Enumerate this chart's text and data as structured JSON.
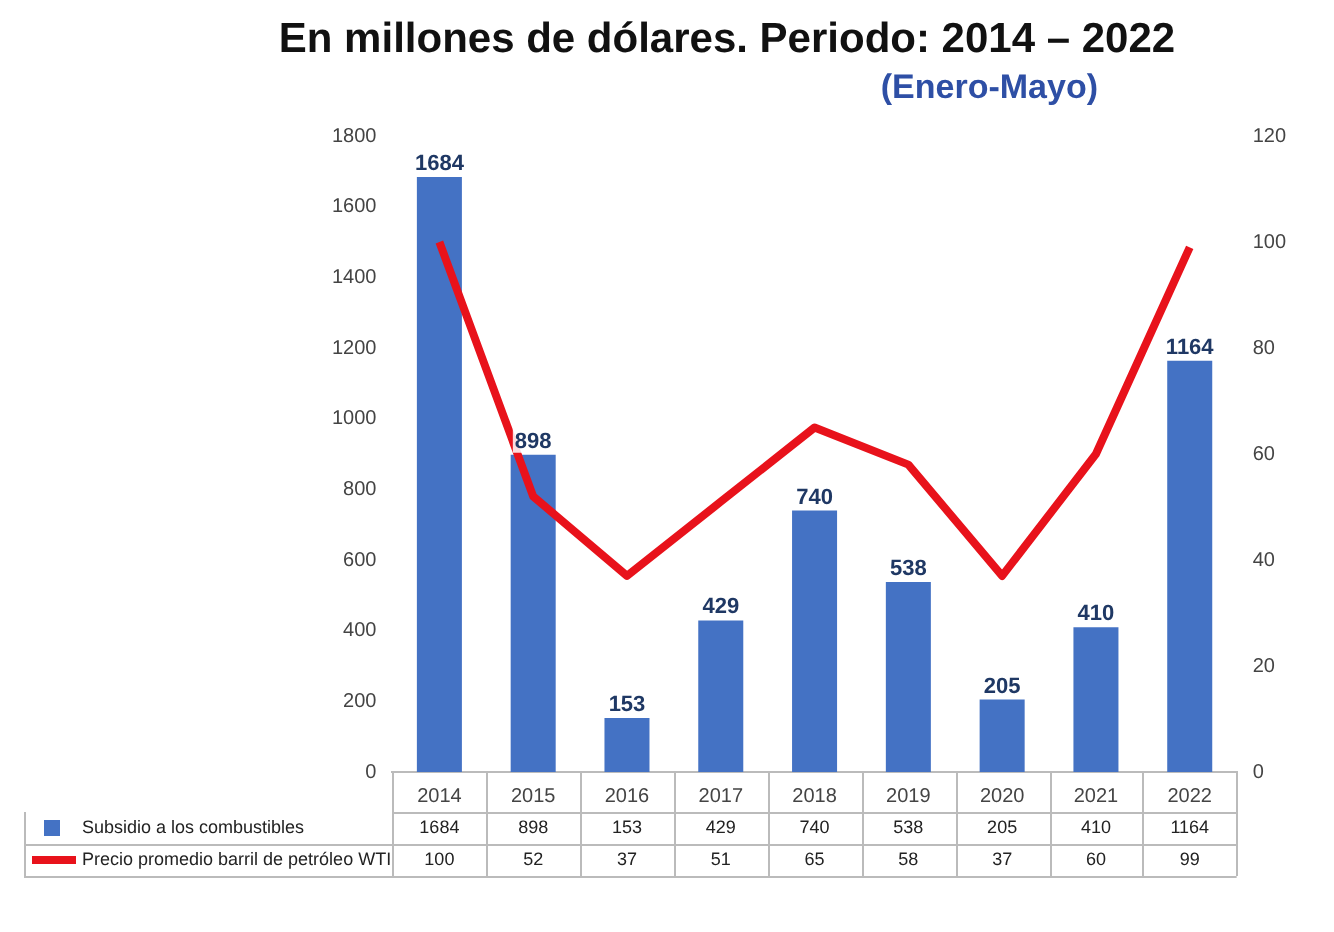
{
  "chart_data": {
    "type": "bar",
    "title": "En millones de dólares. Periodo: 2014 – 2022",
    "subtitle": "(Enero-Mayo)",
    "categories": [
      "2014",
      "2015",
      "2016",
      "2017",
      "2018",
      "2019",
      "2020",
      "2021",
      "2022"
    ],
    "series": [
      {
        "name": "Subsidio a los combustibles",
        "color": "#4472c4",
        "values": [
          1684,
          898,
          153,
          429,
          740,
          538,
          205,
          410,
          1164
        ]
      },
      {
        "name": "Precio promedio barril de petróleo WTI",
        "type": "line",
        "axis": "y2",
        "color": "#e8121b",
        "values": [
          100,
          52,
          37,
          51,
          65,
          58,
          37,
          60,
          99
        ]
      }
    ],
    "ylim": [
      0,
      1800
    ],
    "yticks": [
      0,
      200,
      400,
      600,
      800,
      1000,
      1200,
      1400,
      1600,
      1800
    ],
    "y2lim": [
      0,
      120
    ],
    "y2ticks": [
      0,
      20,
      40,
      60,
      80,
      100,
      120
    ],
    "annotations": [
      {
        "text": "1684",
        "x": "2014",
        "y": 1684
      },
      {
        "text": "898",
        "x": "2015",
        "y": 898
      },
      {
        "text": "153",
        "x": "2016",
        "y": 153
      },
      {
        "text": "429",
        "x": "2017",
        "y": 429
      },
      {
        "text": "740",
        "x": "2018",
        "y": 740
      },
      {
        "text": "538",
        "x": "2019",
        "y": 538
      },
      {
        "text": "205",
        "x": "2020",
        "y": 205
      },
      {
        "text": "410",
        "x": "2021",
        "y": 410
      },
      {
        "text": "1164",
        "x": "2022",
        "y": 1164
      }
    ],
    "data_labels": true,
    "grid": false,
    "legend": "bottom"
  }
}
